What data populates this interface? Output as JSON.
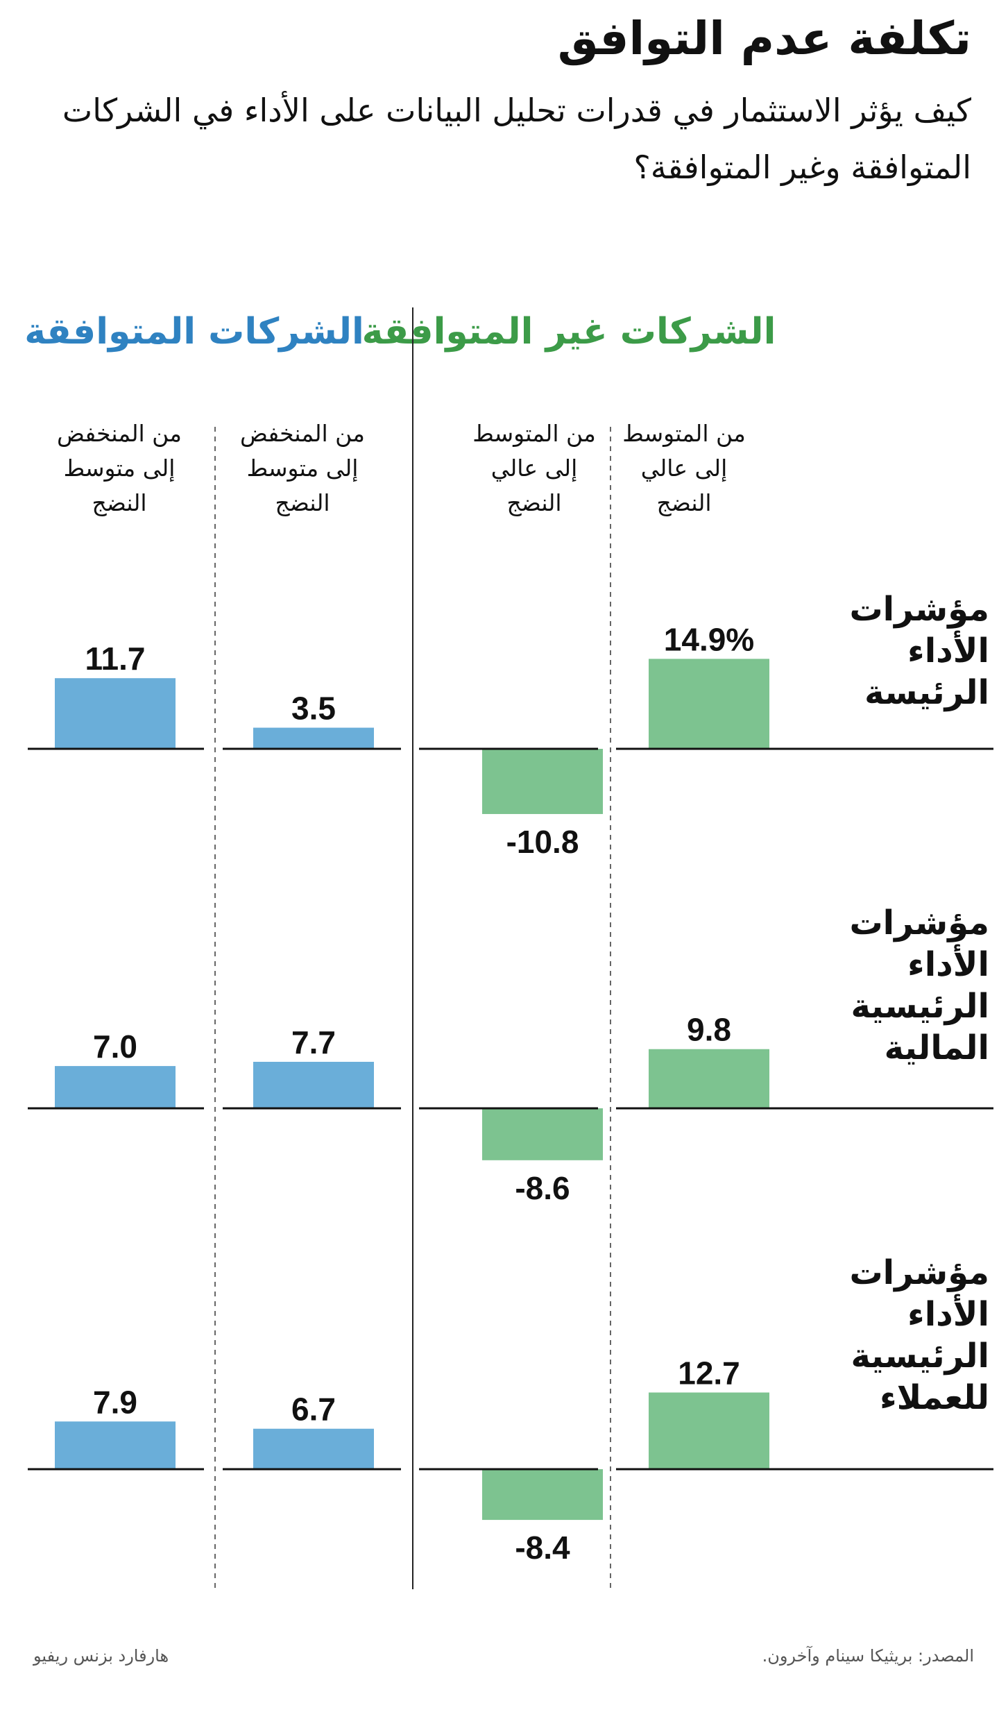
{
  "title": "تكلفة عدم التوافق",
  "subtitle": "كيف يؤثر الاستثمار في قدرات تحليل البيانات على الأداء في الشركات المتوافقة وغير المتوافقة؟",
  "groups": {
    "misaligned": "الشركات غير المتوافقة",
    "aligned": "الشركات المتوافقة"
  },
  "column_labels": {
    "col1": "من المتوسط\nإلى عالي\nالنضج",
    "col2": "من المتوسط\nإلى عالي\nالنضج",
    "col3": "من المنخفض\nإلى متوسط\nالنضج",
    "col4": "من المنخفض\nإلى متوسط\nالنضج"
  },
  "row_labels": {
    "row1": "مؤشرات\nالأداء\nالرئيسة",
    "row2": "مؤشرات\nالأداء\nالرئيسية\nالمالية",
    "row3": "مؤشرات\nالأداء\nالرئيسية\nللعملاء"
  },
  "colors": {
    "misaligned": "#7dc390",
    "aligned": "#6aaed9",
    "misaligned_header": "#3c9b48",
    "aligned_header": "#2f82c1"
  },
  "chart_data": {
    "type": "bar",
    "title": "تكلفة عدم التوافق",
    "columns": [
      "من المتوسط إلى عالي النضج",
      "من المتوسط إلى عالي النضج",
      "من المنخفض إلى متوسط النضج",
      "من المنخفض إلى متوسط النضج"
    ],
    "column_groups": [
      "الشركات غير المتوافقة",
      "الشركات غير المتوافقة",
      "الشركات المتوافقة",
      "الشركات المتوافقة"
    ],
    "rows": [
      {
        "name": "مؤشرات الأداء الرئيسة",
        "values": [
          14.9,
          -10.8,
          3.5,
          11.7
        ],
        "labels": [
          "14.9%",
          "-10.8",
          "3.5",
          "11.7"
        ]
      },
      {
        "name": "مؤشرات الأداء الرئيسية المالية",
        "values": [
          9.8,
          -8.6,
          7.7,
          7.0
        ],
        "labels": [
          "9.8",
          "-8.6",
          "7.7",
          "7.0"
        ]
      },
      {
        "name": "مؤشرات الأداء الرئيسية للعملاء",
        "values": [
          12.7,
          -8.4,
          6.7,
          7.9
        ],
        "labels": [
          "12.7",
          "-8.4",
          "6.7",
          "7.9"
        ]
      }
    ]
  },
  "footer": {
    "source": "المصدر: بريثيكا سينام وآخرون.",
    "publisher": "هارفارد بزنس ريفيو"
  }
}
